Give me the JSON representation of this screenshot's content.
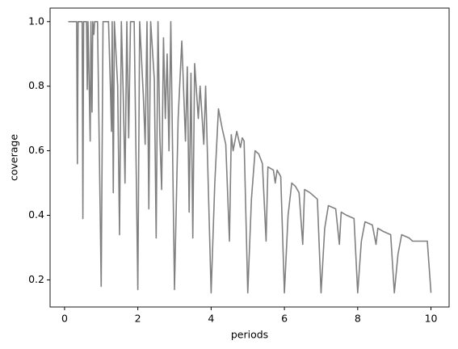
{
  "chart_data": {
    "type": "line",
    "xlabel": "periods",
    "ylabel": "coverage",
    "xlim": [
      -0.395,
      10.495
    ],
    "ylim": [
      0.116,
      1.042
    ],
    "xticks": [
      0,
      2,
      4,
      6,
      8,
      10
    ],
    "yticks": [
      0.2,
      0.4,
      0.6,
      0.8,
      {
        "value": 1,
        "label": "1.0"
      }
    ],
    "grid": false,
    "series": [
      {
        "color": "#808080",
        "x": [
          0.1,
          0.3,
          0.33,
          0.35,
          0.37,
          0.48,
          0.5,
          0.52,
          0.6,
          0.62,
          0.64,
          0.7,
          0.72,
          0.75,
          0.77,
          0.8,
          0.82,
          0.9,
          1.0,
          1.05,
          1.2,
          1.25,
          1.28,
          1.3,
          1.33,
          1.36,
          1.45,
          1.5,
          1.55,
          1.6,
          1.65,
          1.7,
          1.75,
          1.8,
          1.9,
          2.0,
          2.05,
          2.15,
          2.2,
          2.25,
          2.3,
          2.35,
          2.45,
          2.5,
          2.55,
          2.6,
          2.65,
          2.7,
          2.75,
          2.8,
          2.85,
          2.9,
          3.0,
          3.1,
          3.2,
          3.3,
          3.35,
          3.4,
          3.45,
          3.5,
          3.55,
          3.65,
          3.7,
          3.8,
          3.85,
          4.0,
          4.1,
          4.2,
          4.3,
          4.4,
          4.5,
          4.55,
          4.6,
          4.7,
          4.8,
          4.85,
          4.9,
          5.0,
          5.1,
          5.2,
          5.3,
          5.4,
          5.5,
          5.55,
          5.7,
          5.75,
          5.8,
          5.9,
          6.0,
          6.1,
          6.2,
          6.3,
          6.4,
          6.5,
          6.55,
          6.7,
          6.8,
          6.9,
          7.0,
          7.1,
          7.2,
          7.4,
          7.5,
          7.55,
          7.7,
          7.9,
          8.0,
          8.1,
          8.2,
          8.4,
          8.5,
          8.55,
          8.7,
          8.9,
          9.0,
          9.1,
          9.2,
          9.4,
          9.5,
          9.7,
          9.9,
          10.0
        ],
        "values": [
          1.0,
          1.0,
          1.0,
          0.56,
          1.0,
          1.0,
          0.39,
          1.0,
          1.0,
          0.79,
          1.0,
          0.63,
          1.0,
          0.72,
          1.0,
          0.96,
          1.0,
          1.0,
          0.18,
          1.0,
          1.0,
          0.8,
          0.66,
          1.0,
          0.47,
          1.0,
          0.8,
          0.34,
          1.0,
          0.78,
          0.5,
          1.0,
          0.64,
          1.0,
          1.0,
          0.17,
          1.0,
          0.77,
          0.62,
          1.0,
          0.42,
          1.0,
          0.82,
          0.33,
          1.0,
          0.65,
          0.48,
          0.95,
          0.7,
          0.9,
          0.6,
          1.0,
          0.17,
          0.7,
          0.94,
          0.63,
          0.86,
          0.41,
          0.84,
          0.33,
          0.87,
          0.7,
          0.8,
          0.62,
          0.8,
          0.16,
          0.5,
          0.73,
          0.67,
          0.62,
          0.32,
          0.65,
          0.6,
          0.66,
          0.61,
          0.64,
          0.63,
          0.16,
          0.45,
          0.6,
          0.59,
          0.56,
          0.32,
          0.55,
          0.54,
          0.5,
          0.54,
          0.52,
          0.16,
          0.4,
          0.5,
          0.49,
          0.47,
          0.31,
          0.48,
          0.47,
          0.46,
          0.45,
          0.16,
          0.36,
          0.43,
          0.42,
          0.31,
          0.41,
          0.4,
          0.39,
          0.16,
          0.32,
          0.38,
          0.37,
          0.31,
          0.36,
          0.35,
          0.34,
          0.16,
          0.28,
          0.34,
          0.33,
          0.32,
          0.32,
          0.32,
          0.16
        ]
      }
    ]
  }
}
